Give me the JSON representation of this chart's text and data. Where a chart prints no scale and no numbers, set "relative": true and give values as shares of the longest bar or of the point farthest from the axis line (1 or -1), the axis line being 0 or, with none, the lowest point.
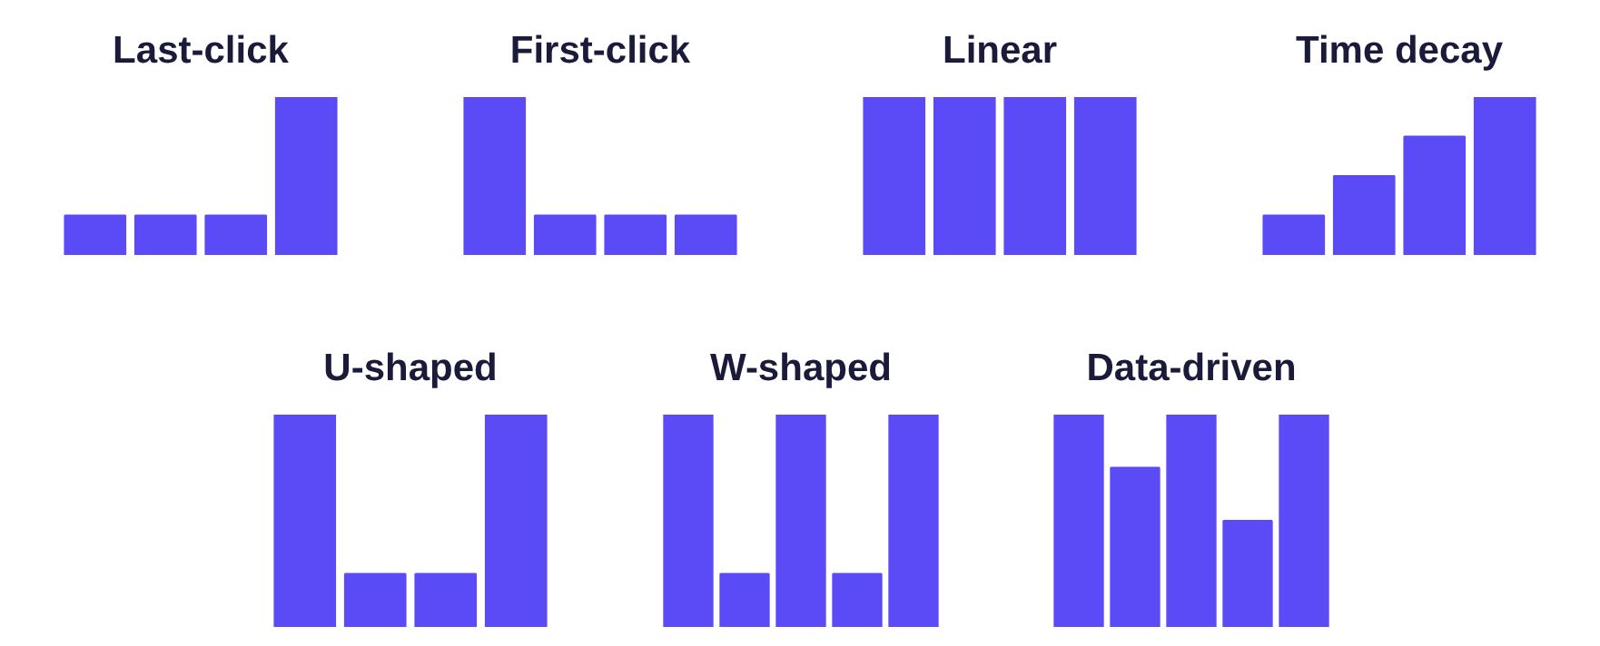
{
  "chart_data": [
    {
      "type": "bar",
      "title": "Last-click",
      "categories": [
        null,
        null,
        null,
        null
      ],
      "values": [
        0.25,
        0.25,
        0.25,
        1
      ],
      "color": "#5b4bf7",
      "relative": true
    },
    {
      "type": "bar",
      "title": "First-click",
      "categories": [
        null,
        null,
        null,
        null
      ],
      "values": [
        1,
        0.25,
        0.25,
        0.25
      ],
      "color": "#5b4bf7",
      "relative": true
    },
    {
      "type": "bar",
      "title": "Linear",
      "categories": [
        null,
        null,
        null,
        null
      ],
      "values": [
        1,
        1,
        1,
        1
      ],
      "color": "#5b4bf7",
      "relative": true
    },
    {
      "type": "bar",
      "title": "Time decay",
      "categories": [
        null,
        null,
        null,
        null
      ],
      "values": [
        0.25,
        0.5,
        0.75,
        1
      ],
      "color": "#5b4bf7",
      "relative": true
    },
    {
      "type": "bar",
      "title": "U-shaped",
      "categories": [
        null,
        null,
        null,
        null
      ],
      "values": [
        1,
        0.25,
        0.25,
        1
      ],
      "color": "#5b4bf7",
      "relative": true
    },
    {
      "type": "bar",
      "title": "W-shaped",
      "categories": [
        null,
        null,
        null,
        null,
        null
      ],
      "values": [
        1,
        0.25,
        1,
        0.25,
        1
      ],
      "color": "#5b4bf7",
      "relative": true
    },
    {
      "type": "bar",
      "title": "Data-driven",
      "categories": [
        null,
        null,
        null,
        null,
        null
      ],
      "values": [
        1,
        0.75,
        1,
        0.5,
        1
      ],
      "color": "#5b4bf7",
      "relative": true
    }
  ]
}
